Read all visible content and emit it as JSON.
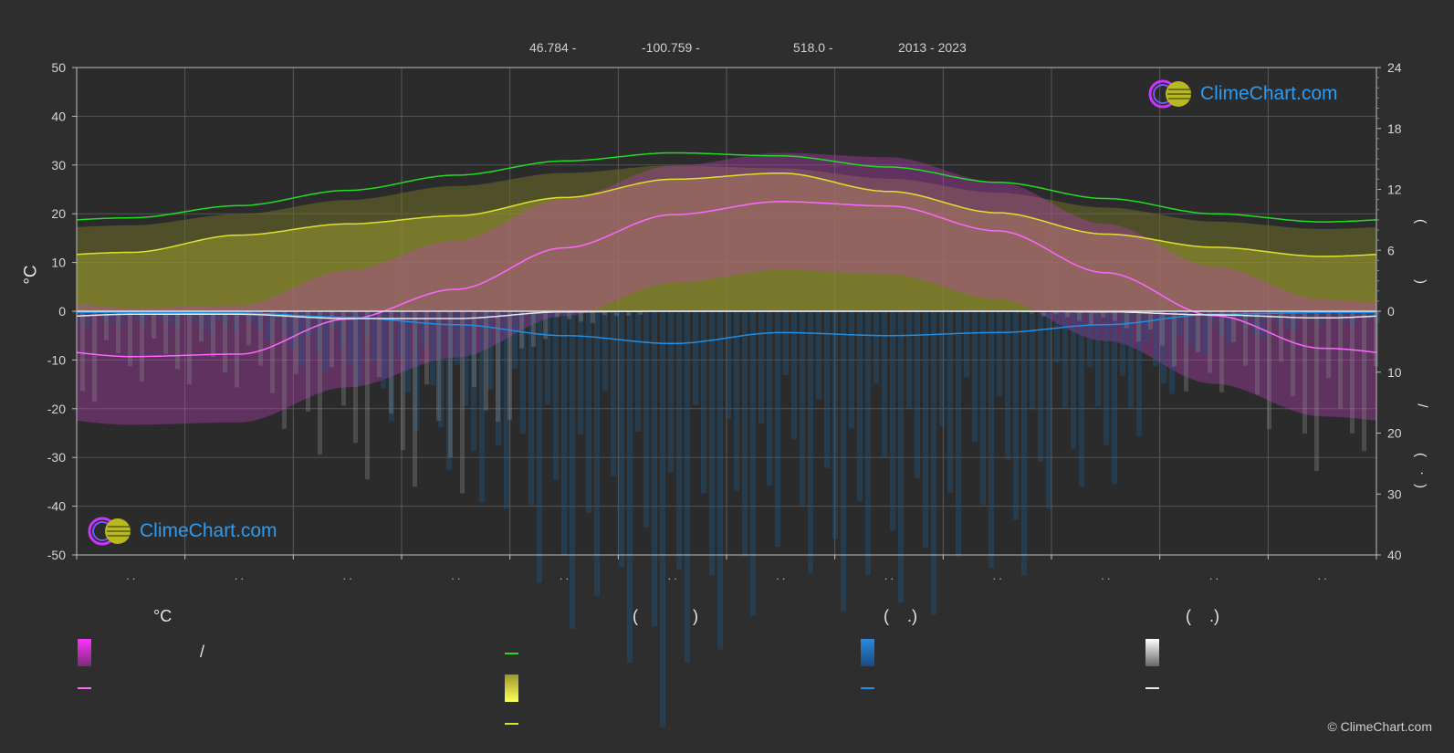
{
  "header": {
    "lat": "46.784 -",
    "lon": "-100.759 -",
    "elev": "518.0 -",
    "years": "2013 - 2023"
  },
  "logo_text": "ClimeChart.com",
  "copyright": "© ClimeChart.com",
  "month_labels": [
    ". .",
    ". .",
    ". .",
    ". .",
    ". .",
    ". .",
    ". .",
    ". .",
    ". .",
    ". .",
    ". .",
    ". ."
  ],
  "legend": {
    "col1_title": "°C",
    "col1_slash": "/",
    "col2_title": "(            )",
    "col3_title": "(    .)",
    "col4_title": "(    .)"
  },
  "colors": {
    "background": "#2e2e2e",
    "daylight": "#22dd22",
    "sunshine": "#e0e030",
    "temp_mean": "#ff66ff",
    "rain": "#1e8fe6",
    "snow": "#e8e8e8",
    "logo": "#2e9bf0"
  },
  "chart_data": {
    "type": "line",
    "title": "",
    "ylabel": "°C",
    "ylim": [
      -50,
      50
    ],
    "yticks": [
      50,
      40,
      30,
      20,
      10,
      0,
      -10,
      -20,
      -30,
      -40,
      -50
    ],
    "y2_upper": {
      "ticks": [
        24,
        18,
        12,
        6,
        0
      ],
      "range": [
        0,
        24
      ]
    },
    "y2_lower": {
      "ticks": [
        0,
        10,
        20,
        30,
        40
      ],
      "range": [
        0,
        40
      ]
    },
    "x_months": 12,
    "series": [
      {
        "key": "daylight",
        "unit": "hours",
        "values": [
          9.2,
          10.4,
          11.9,
          13.4,
          14.8,
          15.6,
          15.3,
          14.2,
          12.7,
          11.1,
          9.6,
          8.8
        ]
      },
      {
        "key": "sunshine",
        "unit": "hours",
        "values": [
          5.8,
          7.5,
          8.6,
          9.4,
          11.2,
          13.0,
          13.6,
          11.8,
          9.7,
          7.6,
          6.3,
          5.4
        ]
      },
      {
        "key": "temp_mean",
        "unit": "°C",
        "values": [
          -9.3,
          -8.8,
          -1.6,
          4.5,
          13.0,
          19.8,
          22.5,
          21.6,
          16.5,
          7.9,
          -0.9,
          -7.6
        ]
      },
      {
        "key": "rain",
        "unit": "mm",
        "values": [
          0.2,
          0.3,
          1.0,
          2.2,
          4.0,
          5.3,
          3.5,
          4.0,
          3.5,
          2.2,
          0.5,
          0.2
        ]
      },
      {
        "key": "snow",
        "unit": "mm",
        "values": [
          0.5,
          0.5,
          1.2,
          1.2,
          0.1,
          0.0,
          0.0,
          0.0,
          0.0,
          0.1,
          0.6,
          1.1
        ]
      }
    ]
  }
}
